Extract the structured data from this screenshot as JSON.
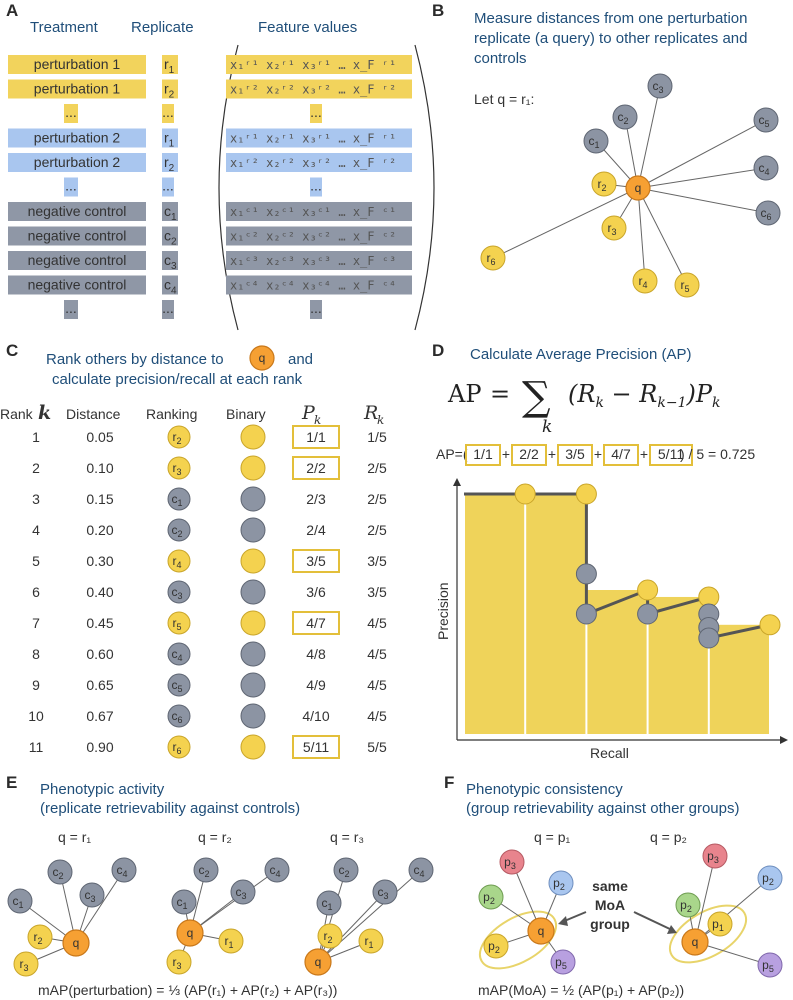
{
  "panels": {
    "A": {
      "letter": "A",
      "headers": {
        "treatment": "Treatment",
        "replicate": "Replicate",
        "features": "Feature values"
      },
      "rows": [
        {
          "treatment": "perturbation 1",
          "replicate": "r",
          "rsub": "1",
          "features": "x₁ʳ¹ x₂ʳ¹ x₃ʳ¹ … x_F ʳ¹",
          "color": "#f2d35c"
        },
        {
          "treatment": "perturbation 1",
          "replicate": "r",
          "rsub": "2",
          "features": "x₁ʳ² x₂ʳ² x₃ʳ² … x_F ʳ²",
          "color": "#f2d35c"
        },
        {
          "treatment": "...",
          "replicate": "...",
          "rsub": "",
          "features": "...",
          "color": "#f2d35c"
        },
        {
          "treatment": "perturbation 2",
          "replicate": "r",
          "rsub": "1",
          "features": "x₁ʳ¹ x₂ʳ¹ x₃ʳ¹ … x_F ʳ¹",
          "color": "#a9c6ef"
        },
        {
          "treatment": "perturbation 2",
          "replicate": "r",
          "rsub": "2",
          "features": "x₁ʳ² x₂ʳ² x₃ʳ² … x_F ʳ²",
          "color": "#a9c6ef"
        },
        {
          "treatment": "...",
          "replicate": "...",
          "rsub": "",
          "features": "...",
          "color": "#a9c6ef"
        },
        {
          "treatment": "negative control",
          "replicate": "c",
          "rsub": "1",
          "features": "x₁ᶜ¹ x₂ᶜ¹ x₃ᶜ¹ … x_F ᶜ¹",
          "color": "#8f97a6"
        },
        {
          "treatment": "negative control",
          "replicate": "c",
          "rsub": "2",
          "features": "x₁ᶜ² x₂ᶜ² x₃ᶜ² … x_F ᶜ²",
          "color": "#8f97a6"
        },
        {
          "treatment": "negative control",
          "replicate": "c",
          "rsub": "3",
          "features": "x₁ᶜ³ x₂ᶜ³ x₃ᶜ³ … x_F ᶜ³",
          "color": "#8f97a6"
        },
        {
          "treatment": "negative control",
          "replicate": "c",
          "rsub": "4",
          "features": "x₁ᶜ⁴ x₂ᶜ⁴ x₃ᶜ⁴ … x_F ᶜ⁴",
          "color": "#8f97a6"
        },
        {
          "treatment": "...",
          "replicate": "...",
          "rsub": "",
          "features": "...",
          "color": "#8f97a6"
        }
      ]
    },
    "B": {
      "letter": "B",
      "title_l1": "Measure distances from one perturbation",
      "title_l2": "replicate (a query) to other replicates and",
      "title_l3": "controls",
      "let": "Let  q = r₁:"
    },
    "C": {
      "letter": "C",
      "title_l1": "Rank others by distance to",
      "title_l1b": "and",
      "title_l2": "calculate precision/recall at each rank",
      "col_rank": "Rank",
      "col_k": "k",
      "col_distance": "Distance",
      "col_ranking": "Ranking",
      "col_binary": "Binary",
      "col_pk": "P",
      "col_rk": "R",
      "rows": [
        {
          "rank": "1",
          "distance": "0.05",
          "node": "r",
          "sub": "2",
          "kind": "pos",
          "p": "1/1",
          "r": "1/5"
        },
        {
          "rank": "2",
          "distance": "0.10",
          "node": "r",
          "sub": "3",
          "kind": "pos",
          "p": "2/2",
          "r": "2/5"
        },
        {
          "rank": "3",
          "distance": "0.15",
          "node": "c",
          "sub": "1",
          "kind": "neg",
          "p": "2/3",
          "r": "2/5"
        },
        {
          "rank": "4",
          "distance": "0.20",
          "node": "c",
          "sub": "2",
          "kind": "neg",
          "p": "2/4",
          "r": "2/5"
        },
        {
          "rank": "5",
          "distance": "0.30",
          "node": "r",
          "sub": "4",
          "kind": "pos",
          "p": "3/5",
          "r": "3/5"
        },
        {
          "rank": "6",
          "distance": "0.40",
          "node": "c",
          "sub": "3",
          "kind": "neg",
          "p": "3/6",
          "r": "3/5"
        },
        {
          "rank": "7",
          "distance": "0.45",
          "node": "r",
          "sub": "5",
          "kind": "pos",
          "p": "4/7",
          "r": "4/5"
        },
        {
          "rank": "8",
          "distance": "0.60",
          "node": "c",
          "sub": "4",
          "kind": "neg",
          "p": "4/8",
          "r": "4/5"
        },
        {
          "rank": "9",
          "distance": "0.65",
          "node": "c",
          "sub": "5",
          "kind": "neg",
          "p": "4/9",
          "r": "4/5"
        },
        {
          "rank": "10",
          "distance": "0.67",
          "node": "c",
          "sub": "6",
          "kind": "neg",
          "p": "4/10",
          "r": "4/5"
        },
        {
          "rank": "11",
          "distance": "0.90",
          "node": "r",
          "sub": "6",
          "kind": "pos",
          "p": "5/11",
          "r": "5/5"
        }
      ]
    },
    "D": {
      "letter": "D",
      "title": "Calculate Average Precision (AP)",
      "ap_prefix": "AP=(",
      "ap_terms": [
        "1/1",
        "2/2",
        "3/5",
        "4/7",
        "5/11"
      ],
      "ap_suffix": ") / 5 = 0.725",
      "xlabel": "Recall",
      "ylabel": "Precision"
    },
    "E": {
      "letter": "E",
      "title_l1": "Phenotypic activity",
      "title_l2": "(replicate retrievability against controls)",
      "q1": "q = r₁",
      "q2": "q = r₂",
      "q3": "q = r₃",
      "formula": "mAP(perturbation) = ⅓ (AP(r₁) + AP(r₂) + AP(r₃))"
    },
    "F": {
      "letter": "F",
      "title_l1": "Phenotypic consistency",
      "title_l2": "(group retrievability against other groups)",
      "q1": "q = p₁",
      "q2": "q = p₂",
      "same1": "same",
      "same2": "MoA",
      "same3": "group",
      "formula": "mAP(MoA) = ½ (AP(p₁) + AP(p₂))"
    }
  },
  "pr_curve": {
    "type": "line",
    "recall": [
      0,
      0.2,
      0.4,
      0.4,
      0.4,
      0.6,
      0.6,
      0.8,
      0.8,
      0.8,
      0.8,
      1.0
    ],
    "precision": [
      1.0,
      1.0,
      1.0,
      0.667,
      0.5,
      0.6,
      0.5,
      0.571,
      0.5,
      0.444,
      0.4,
      0.455
    ],
    "xlim": [
      0,
      1
    ],
    "ylim": [
      0,
      1
    ]
  }
}
